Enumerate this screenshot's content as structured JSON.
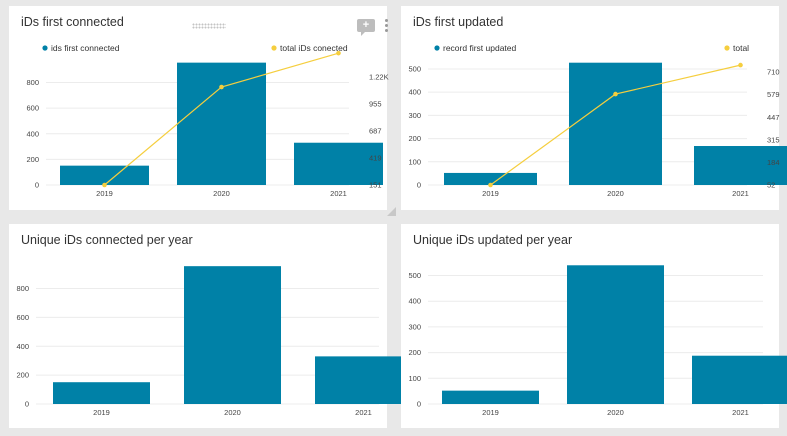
{
  "colors": {
    "bar": "#0081a7",
    "line": "#f5ce3e",
    "grid": "#ececec",
    "background": "#e8e8e8"
  },
  "icons": [
    "drag-handle-icon",
    "comment-plus-icon",
    "more-vertical-icon",
    "resize-corner-icon"
  ],
  "panels": [
    {
      "title": "iDs first connected",
      "legend": [
        "ids first connected",
        "total iDs conected"
      ],
      "comment_glyph": "+"
    },
    {
      "title": "iDs first updated",
      "legend": [
        "record first updated",
        "total"
      ]
    },
    {
      "title": "Unique iDs connected per year"
    },
    {
      "title": "Unique iDs updated per year"
    }
  ],
  "chart_data": [
    {
      "type": "bar",
      "title": "iDs first connected",
      "categories": [
        "2019",
        "2020",
        "2021"
      ],
      "series": [
        {
          "name": "ids first connected",
          "kind": "bar",
          "axis": "left",
          "values": [
            151,
            955,
            330
          ]
        },
        {
          "name": "total iDs conected",
          "kind": "line",
          "axis": "right",
          "values": [
            151,
            1106,
            1436
          ]
        }
      ],
      "ylim": [
        0,
        960
      ],
      "yticks": [
        "0",
        "200",
        "400",
        "600",
        "800"
      ],
      "y2lim": [
        151,
        1350
      ],
      "y2ticks": [
        "151",
        "419",
        "687",
        "955",
        "1.22K"
      ],
      "legend_position": "top"
    },
    {
      "type": "bar",
      "title": "iDs first updated",
      "categories": [
        "2019",
        "2020",
        "2021"
      ],
      "series": [
        {
          "name": "record first updated",
          "kind": "bar",
          "axis": "left",
          "values": [
            52,
            527,
            168
          ]
        },
        {
          "name": "total",
          "kind": "line",
          "axis": "right",
          "values": [
            52,
            579,
            747
          ]
        }
      ],
      "ylim": [
        0,
        530
      ],
      "yticks": [
        "0",
        "100",
        "200",
        "300",
        "400",
        "500"
      ],
      "y2lim": [
        52,
        765
      ],
      "y2ticks": [
        "52",
        "184",
        "315",
        "447",
        "579",
        "710"
      ],
      "legend_position": "top"
    },
    {
      "type": "bar",
      "title": "Unique iDs connected per year",
      "categories": [
        "2019",
        "2020",
        "2021"
      ],
      "series": [
        {
          "kind": "bar",
          "values": [
            151,
            955,
            330
          ]
        }
      ],
      "ylim": [
        0,
        970
      ],
      "yticks": [
        "0",
        "200",
        "400",
        "600",
        "800"
      ]
    },
    {
      "type": "bar",
      "title": "Unique iDs updated per year",
      "categories": [
        "2019",
        "2020",
        "2021"
      ],
      "series": [
        {
          "kind": "bar",
          "values": [
            52,
            540,
            188
          ]
        }
      ],
      "ylim": [
        0,
        545
      ],
      "yticks": [
        "0",
        "100",
        "200",
        "300",
        "400",
        "500"
      ]
    }
  ]
}
